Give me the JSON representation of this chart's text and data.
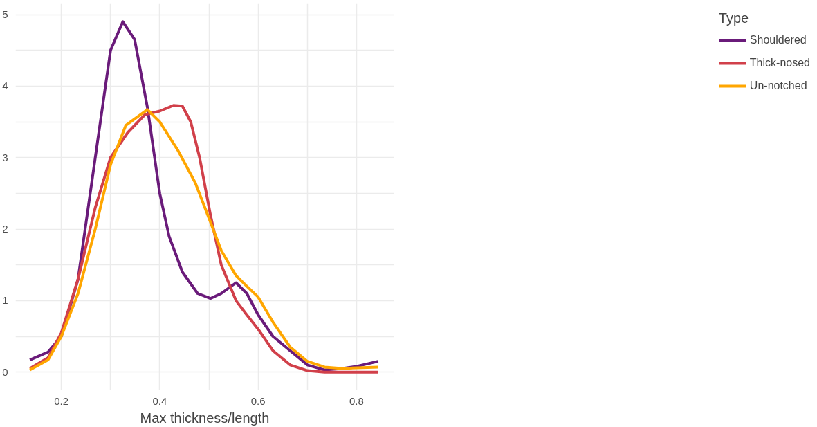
{
  "chart_data": {
    "type": "line",
    "xlabel": "Max thickness/length",
    "legend_title": "Type",
    "legend": "right",
    "grid": true,
    "line_style": "solid",
    "marker": "none",
    "xlim": [
      0.107,
      0.876
    ],
    "ylim": [
      -0.25,
      5.15
    ],
    "xticks": [
      0.2,
      {
        "value": 0.3,
        "label": null
      },
      0.4,
      {
        "value": 0.5,
        "label": null
      },
      0.6,
      {
        "value": 0.7,
        "label": null
      },
      0.8
    ],
    "yticks": [
      0,
      {
        "value": 0.5,
        "label": null
      },
      1,
      {
        "value": 1.5,
        "label": null
      },
      2,
      {
        "value": 2.5,
        "label": null
      },
      3,
      {
        "value": 3.5,
        "label": null
      },
      4,
      {
        "value": 4.5,
        "label": null
      },
      5
    ],
    "series": [
      {
        "name": "Shouldered",
        "color": "#6a1b7a",
        "x": [
          0.136,
          0.173,
          0.2,
          0.234,
          0.269,
          0.3,
          0.325,
          0.349,
          0.375,
          0.4,
          0.419,
          0.446,
          0.477,
          0.503,
          0.525,
          0.555,
          0.577,
          0.6,
          0.63,
          0.665,
          0.7,
          0.735,
          0.771,
          0.8,
          0.844
        ],
        "values": [
          0.17,
          0.28,
          0.5,
          1.3,
          3.0,
          4.5,
          4.9,
          4.65,
          3.7,
          2.5,
          1.9,
          1.4,
          1.1,
          1.03,
          1.1,
          1.25,
          1.1,
          0.8,
          0.5,
          0.3,
          0.1,
          0.03,
          0.05,
          0.08,
          0.15
        ]
      },
      {
        "name": "Thick-nosed",
        "color": "#d1404a",
        "x": [
          0.136,
          0.173,
          0.2,
          0.234,
          0.269,
          0.3,
          0.335,
          0.37,
          0.4,
          0.428,
          0.446,
          0.463,
          0.481,
          0.503,
          0.525,
          0.555,
          0.577,
          0.6,
          0.63,
          0.665,
          0.7,
          0.735,
          0.8,
          0.844
        ],
        "values": [
          0.05,
          0.2,
          0.55,
          1.3,
          2.3,
          3.0,
          3.35,
          3.6,
          3.65,
          3.73,
          3.72,
          3.5,
          3.0,
          2.2,
          1.5,
          1.0,
          0.8,
          0.6,
          0.3,
          0.1,
          0.02,
          0.0,
          0.0,
          0.0
        ]
      },
      {
        "name": "Un-notched",
        "color": "#ffa600",
        "x": [
          0.136,
          0.173,
          0.2,
          0.234,
          0.269,
          0.3,
          0.331,
          0.375,
          0.4,
          0.437,
          0.472,
          0.503,
          0.525,
          0.555,
          0.577,
          0.6,
          0.63,
          0.665,
          0.7,
          0.735,
          0.771,
          0.8,
          0.844
        ],
        "values": [
          0.03,
          0.17,
          0.5,
          1.1,
          2.0,
          2.9,
          3.45,
          3.67,
          3.5,
          3.1,
          2.65,
          2.1,
          1.7,
          1.35,
          1.2,
          1.05,
          0.7,
          0.35,
          0.15,
          0.07,
          0.05,
          0.06,
          0.07
        ]
      }
    ]
  }
}
